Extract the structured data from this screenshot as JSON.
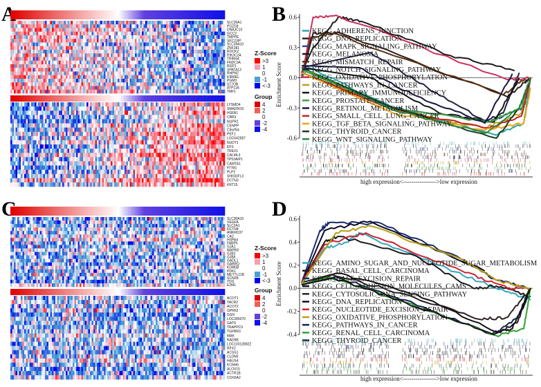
{
  "panels": {
    "a": "A",
    "b": "B",
    "c": "C",
    "d": "D"
  },
  "colors": {
    "z_hi": "#ff0000",
    "z_1": "#f3a0b0",
    "z_0": "#ffffff",
    "z_m1": "#4aa0d8",
    "z_lo": "#0000ee",
    "g4": "#e00000",
    "g2": "#f06050",
    "g0": "#ffffff",
    "gm2": "#6040e0",
    "gm4": "#1010e8"
  },
  "chart_data": [
    {
      "type": "heatmap",
      "panel": "A",
      "row_labels_top": [
        "SLC30A1",
        "PDZD8",
        "DNAJC10",
        "GCC2",
        "TMPPE",
        "SEC23IP",
        "SLC39A10",
        "ZNF281",
        "ROCK2",
        "PIK3C2A",
        "TRIM44",
        "FNDC3A",
        "RGP1",
        "SPATA13",
        "RHPN2",
        "KIRREL",
        "PGM3",
        "ST7OB",
        "ATP11A",
        "TMF1"
      ],
      "row_labels_bottom": [
        "LYSMD4",
        "SMAD5OS",
        "HSFB1",
        "CBR3",
        "NUPR1",
        "CENPP",
        "C9orf54",
        "PEF1",
        "LOC642587",
        "NUDT1",
        "EFS",
        "TREX1",
        "CALML3",
        "TP53AIP1",
        "CAMTA1",
        "FITM1",
        "PLP2",
        "SHISGFL3",
        "DCTN3",
        "KRT15"
      ],
      "zscore_legend": {
        "title": "Z-Score",
        "labels": [
          ">3",
          "1",
          "0",
          "-1",
          "<-3"
        ]
      },
      "group_legend": {
        "title": "Group",
        "labels": [
          "4",
          "2",
          "0",
          "-2",
          "-4"
        ]
      }
    },
    {
      "type": "line",
      "panel": "B",
      "ylabel": "Enrichment Score",
      "yticks": [
        "0.6",
        "0.3",
        "0.0",
        "-0.3",
        "-0.6"
      ],
      "ylim": [
        -0.6,
        0.65
      ],
      "xlabel": "high expression<---------------->low expression",
      "series": [
        {
          "name": "KEGG_ADHERENS_JUNCTION",
          "color": "#2aa8a8",
          "points": [
            [
              0,
              0
            ],
            [
              0.03,
              0.1
            ],
            [
              0.4,
              -0.3
            ],
            [
              0.85,
              -0.57
            ],
            [
              0.97,
              -0.45
            ],
            [
              1,
              0
            ]
          ]
        },
        {
          "name": "KEGG_DNA_REPLICATION",
          "color": "#2b2020",
          "points": [
            [
              0,
              0
            ],
            [
              0.05,
              0.44
            ],
            [
              0.16,
              0.45
            ],
            [
              0.9,
              -0.19
            ],
            [
              0.97,
              -0.05
            ],
            [
              1,
              0
            ]
          ]
        },
        {
          "name": "KEGG_MAPK_SIGNALING_PATHWAY",
          "color": "#2a4a8a",
          "points": [
            [
              0,
              0.05
            ],
            [
              0.4,
              -0.3
            ],
            [
              0.82,
              -0.44
            ],
            [
              0.97,
              -0.3
            ],
            [
              1,
              0
            ]
          ]
        },
        {
          "name": "KEGG_MELANOMA",
          "color": "#1a1a1a",
          "points": [
            [
              0,
              0.05
            ],
            [
              0.05,
              0.3
            ],
            [
              0.16,
              0.6
            ],
            [
              0.26,
              0.56
            ],
            [
              0.65,
              0.22
            ],
            [
              0.93,
              0.07
            ]
          ]
        },
        {
          "name": "KEGG_MISMATCH_REPAIR",
          "color": "#5a3010",
          "points": [
            [
              0,
              0.02
            ],
            [
              0.04,
              0.4
            ],
            [
              0.14,
              0.44
            ],
            [
              0.88,
              -0.17
            ],
            [
              0.98,
              0
            ]
          ]
        },
        {
          "name": "KEGG_NOTCH_SIGNALING_PATHWAY",
          "color": "#202040",
          "points": [
            [
              0,
              0.1
            ],
            [
              0.3,
              0.25
            ],
            [
              0.55,
              -0.1
            ],
            [
              0.8,
              -0.43
            ],
            [
              0.88,
              -0.35
            ],
            [
              0.95,
              0.05
            ]
          ]
        },
        {
          "name": "KEGG_OXIDATIVE_PHOSPHORYLATION",
          "color": "#c8305a",
          "points": [
            [
              0,
              0
            ],
            [
              0.05,
              0.6
            ],
            [
              0.15,
              0.62
            ],
            [
              0.9,
              -0.02
            ],
            [
              1,
              0
            ]
          ]
        },
        {
          "name": "KEGG_PATHWAYS_IN_CANCER",
          "color": "#b8a020",
          "points": [
            [
              0,
              0.08
            ],
            [
              0.4,
              -0.32
            ],
            [
              0.8,
              -0.5
            ],
            [
              0.96,
              -0.35
            ],
            [
              1,
              0
            ]
          ]
        },
        {
          "name": "KEGG_PRIMARY_IMMUNODEFICIENCY",
          "color": "#151515",
          "points": [
            [
              0,
              0.1
            ],
            [
              0.3,
              0.0
            ],
            [
              0.6,
              -0.35
            ],
            [
              0.84,
              -0.44
            ],
            [
              0.95,
              0
            ]
          ]
        },
        {
          "name": "KEGG_PROSTATE_CANCER",
          "color": "#40a040",
          "points": [
            [
              0,
              0.08
            ],
            [
              0.4,
              -0.3
            ],
            [
              0.82,
              -0.44
            ],
            [
              0.96,
              -0.3
            ],
            [
              1,
              0
            ]
          ]
        },
        {
          "name": "KEGG_RETINOL_METABOLISM",
          "color": "#161640",
          "points": [
            [
              0,
              0.12
            ],
            [
              0.25,
              0.1
            ],
            [
              0.5,
              -0.18
            ],
            [
              0.8,
              -0.45
            ],
            [
              0.92,
              0.04
            ]
          ]
        },
        {
          "name": "KEGG_SMALL_CELL_LUNG_CANCER",
          "color": "#c82020",
          "points": [
            [
              0,
              0.05
            ],
            [
              0.4,
              -0.32
            ],
            [
              0.82,
              -0.5
            ],
            [
              0.96,
              -0.38
            ],
            [
              1,
              0
            ]
          ]
        },
        {
          "name": "KEGG_TGF_BETA_SIGNALING_PATHWAY",
          "color": "#f0a010",
          "points": [
            [
              0,
              0.05
            ],
            [
              0.4,
              -0.35
            ],
            [
              0.8,
              -0.52
            ],
            [
              0.97,
              -0.45
            ],
            [
              1,
              -0.1
            ]
          ]
        },
        {
          "name": "KEGG_THYROID_CANCER",
          "color": "#1a3a22",
          "points": [
            [
              0,
              0.1
            ],
            [
              0.4,
              -0.3
            ],
            [
              0.85,
              -0.6
            ],
            [
              0.95,
              -0.3
            ],
            [
              1,
              0
            ]
          ]
        },
        {
          "name": "KEGG_WNT_SIGNALING_PATHWAY",
          "color": "#2a8a3a",
          "points": [
            [
              0,
              0.1
            ],
            [
              0.4,
              -0.32
            ],
            [
              0.8,
              -0.55
            ],
            [
              0.95,
              -0.3
            ],
            [
              1,
              0
            ]
          ]
        }
      ]
    },
    {
      "type": "heatmap",
      "panel": "C",
      "row_labels_top": [
        "SLC30A10",
        "VEGFA",
        "SLC2A1",
        "DCTN4",
        "ANKRD37",
        "CA2",
        "HSPA4",
        "FABP5",
        "GJA1",
        "MAPK8",
        "GJB2",
        "GJB6",
        "GADL1",
        "GABRQ",
        "KDM5B",
        "PDK1",
        "METTL11B",
        "SCN2B",
        "TDG",
        "E2M1"
      ],
      "row_labels_bottom": [
        "ACOT1",
        "TACR2",
        "ACOT2",
        "GPR62",
        "GSN",
        "LOC285070",
        "GATS",
        "TRAPPC9",
        "TGFBR3",
        "MAK",
        "RAD9B",
        "LOC100128822",
        "RFX2",
        "ACSS1",
        "CLDN9",
        "HAUS4",
        "KCNH6",
        "ALOX15",
        "ACTR1B",
        "COX6A2"
      ],
      "zscore_legend": {
        "title": "Z-Score",
        "labels": [
          ">3",
          "1",
          "0",
          "-1",
          "<-3"
        ]
      },
      "group_legend": {
        "title": "Group",
        "labels": [
          "4",
          "2",
          "0",
          "-2",
          "-4"
        ]
      }
    },
    {
      "type": "line",
      "panel": "D",
      "ylabel": "Enrichment Score",
      "yticks": [
        "0.6",
        "0.4",
        "0.2",
        "0.0",
        "-0.2",
        "-0.4"
      ],
      "ylim": [
        -0.42,
        0.62
      ],
      "xlabel": "high expression<---------------->low expression",
      "series": [
        {
          "name": "KEGG_AMINO_SUGAR_AND_NUCLEOTIDE_SUGAR_METABOLISM",
          "color": "#30a8c0",
          "points": [
            [
              0,
              0.03
            ],
            [
              0.1,
              0.35
            ],
            [
              0.2,
              0.4
            ],
            [
              0.25,
              0.48
            ],
            [
              0.6,
              0.2
            ],
            [
              0.85,
              0
            ],
            [
              1,
              -0.1
            ]
          ]
        },
        {
          "name": "KEGG_BASAL_CELL_CARCINOMA",
          "color": "#1a1a1a",
          "points": [
            [
              0,
              0.05
            ],
            [
              0.1,
              0.4
            ],
            [
              0.16,
              0.45
            ],
            [
              0.5,
              0.28
            ],
            [
              0.75,
              0
            ],
            [
              0.85,
              0.02
            ],
            [
              1,
              -0.07
            ]
          ]
        },
        {
          "name": "KEGG_BASE_EXCISION_REPAIR",
          "color": "#1a2a6a",
          "points": [
            [
              0,
              0.05
            ],
            [
              0.08,
              0.5
            ],
            [
              0.12,
              0.57
            ],
            [
              0.35,
              0.56
            ],
            [
              0.7,
              0.25
            ],
            [
              0.85,
              0.07
            ],
            [
              1,
              0
            ]
          ]
        },
        {
          "name": "KEGG_CELL_ADHESION_MOLECULES_CAMS",
          "color": "#101010",
          "points": [
            [
              0,
              0.03
            ],
            [
              0.15,
              0.13
            ],
            [
              0.5,
              -0.05
            ],
            [
              0.85,
              -0.38
            ],
            [
              0.92,
              -0.35
            ],
            [
              1,
              0
            ]
          ]
        },
        {
          "name": "KEGG_CYTOSOLIC_DNA_SENSING_PATHWAY",
          "color": "#2a2020",
          "points": [
            [
              0,
              0.05
            ],
            [
              0.13,
              0.12
            ],
            [
              0.45,
              -0.05
            ],
            [
              0.78,
              -0.27
            ],
            [
              0.9,
              -0.25
            ],
            [
              1,
              0
            ]
          ]
        },
        {
          "name": "KEGG_DNA_REPLICATION",
          "color": "#0a0a2a",
          "points": [
            [
              0,
              0.04
            ],
            [
              0.1,
              0.5
            ],
            [
              0.3,
              0.58
            ],
            [
              0.8,
              0.15
            ]
          ]
        },
        {
          "name": "KEGG_NUCLEOTIDE_EXCISION_REPAIR",
          "color": "#d02030",
          "points": [
            [
              0,
              0.05
            ],
            [
              0.1,
              0.38
            ],
            [
              0.28,
              0.48
            ],
            [
              0.7,
              0.15
            ],
            [
              0.9,
              0
            ],
            [
              1,
              0
            ]
          ]
        },
        {
          "name": "KEGG_OXIDATIVE_PHOSPHORYLATION",
          "color": "#b8a010",
          "points": [
            [
              0,
              0.04
            ],
            [
              0.15,
              0.48
            ],
            [
              0.3,
              0.54
            ],
            [
              0.7,
              0.25
            ],
            [
              0.85,
              0.07
            ],
            [
              1,
              0
            ]
          ]
        },
        {
          "name": "KEGG_PATHWAYS_IN_CANCER",
          "color": "#1a2050",
          "points": [
            [
              0,
              0.03
            ],
            [
              0.15,
              0.1
            ],
            [
              0.45,
              -0.1
            ],
            [
              0.83,
              -0.4
            ],
            [
              0.95,
              -0.25
            ],
            [
              1,
              0
            ]
          ]
        },
        {
          "name": "KEGG_RENAL_CELL_CARCINOMA",
          "color": "#30a030",
          "points": [
            [
              0,
              0.03
            ],
            [
              0.12,
              0.1
            ],
            [
              0.45,
              -0.12
            ],
            [
              0.85,
              -0.41
            ],
            [
              0.97,
              -0.35
            ],
            [
              1,
              0
            ]
          ]
        },
        {
          "name": "KEGG_THYROID_CANCER",
          "color": "#151515",
          "points": [
            [
              0,
              0.03
            ],
            [
              0.14,
              0.09
            ],
            [
              0.45,
              -0.12
            ],
            [
              0.84,
              -0.4
            ],
            [
              0.94,
              -0.3
            ],
            [
              1,
              0
            ]
          ]
        }
      ]
    }
  ]
}
